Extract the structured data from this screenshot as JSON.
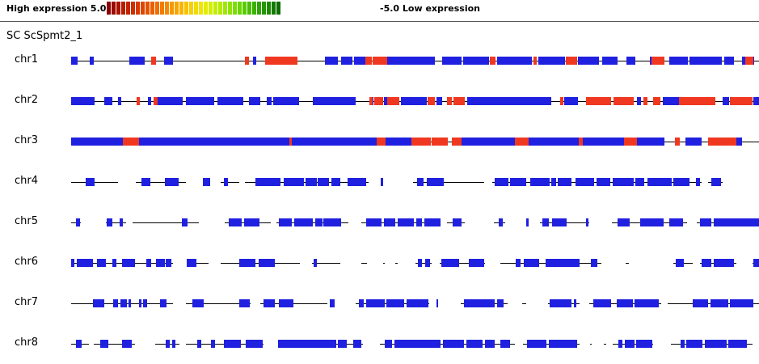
{
  "legend": {
    "high_label": "High expression 5.0",
    "low_label": "-5.0 Low expression",
    "swatch_colors": [
      "#8b0000",
      "#9a0a00",
      "#a81200",
      "#b51c00",
      "#c22400",
      "#cc2e00",
      "#d63a00",
      "#de4600",
      "#e45200",
      "#ea6000",
      "#ee6e00",
      "#f27c00",
      "#f48a00",
      "#f69800",
      "#f8a600",
      "#f8b400",
      "#f8c200",
      "#f6d000",
      "#f2dc00",
      "#eee600",
      "#e4ec00",
      "#d4ee00",
      "#c4ee00",
      "#b2ec00",
      "#a0e800",
      "#8ee400",
      "#7cde00",
      "#6ad600",
      "#58cc00",
      "#48c000",
      "#3ab200",
      "#2ea400",
      "#249600",
      "#1c8800",
      "#147a00",
      "#0e6c00"
    ]
  },
  "title": "SC  ScSpmt2_1",
  "colors": {
    "block": "#2020e0",
    "highlight": "#f03820",
    "line": "#000000"
  },
  "chart_data": {
    "type": "genome-track",
    "title": "SC  ScSpmt2_1",
    "chromosomes": [
      {
        "name": "chr1",
        "lines": [
          [
            88,
            939
          ]
        ],
        "blue": [
          [
            88,
            96
          ],
          [
            111,
            116
          ],
          [
            160,
            179
          ],
          [
            203,
            214
          ],
          [
            313,
            317
          ],
          [
            402,
            418
          ],
          [
            422,
            436
          ],
          [
            438,
            452
          ],
          [
            479,
            538
          ],
          [
            547,
            571
          ],
          [
            573,
            605
          ],
          [
            615,
            658
          ],
          [
            666,
            699
          ],
          [
            715,
            741
          ],
          [
            745,
            764
          ],
          [
            775,
            786
          ],
          [
            804,
            822
          ],
          [
            828,
            851
          ],
          [
            853,
            893
          ],
          [
            896,
            908
          ],
          [
            918,
            933
          ]
        ],
        "red": [
          [
            187,
            193
          ],
          [
            303,
            308
          ],
          [
            328,
            368
          ],
          [
            452,
            460
          ],
          [
            461,
            479
          ],
          [
            606,
            613
          ],
          [
            660,
            664
          ],
          [
            700,
            714
          ],
          [
            806,
            822
          ],
          [
            922,
            932
          ]
        ]
      },
      {
        "name": "chr2",
        "lines": [
          [
            88,
            939
          ]
        ],
        "blue": [
          [
            88,
            117
          ],
          [
            129,
            139
          ],
          [
            146,
            150
          ],
          [
            183,
            187
          ],
          [
            195,
            226
          ],
          [
            230,
            265
          ],
          [
            269,
            301
          ],
          [
            308,
            322
          ],
          [
            330,
            336
          ],
          [
            338,
            370
          ],
          [
            387,
            440
          ],
          [
            458,
            462
          ],
          [
            475,
            479
          ],
          [
            496,
            528
          ],
          [
            540,
            547
          ],
          [
            578,
            682
          ],
          [
            698,
            715
          ],
          [
            788,
            793
          ],
          [
            820,
            840
          ],
          [
            894,
            902
          ],
          [
            932,
            939
          ]
        ],
        "red": [
          [
            169,
            173
          ],
          [
            190,
            195
          ],
          [
            457,
            461
          ],
          [
            463,
            474
          ],
          [
            479,
            494
          ],
          [
            529,
            538
          ],
          [
            553,
            559
          ],
          [
            561,
            575
          ],
          [
            693,
            697
          ],
          [
            725,
            756
          ],
          [
            759,
            784
          ],
          [
            796,
            801
          ],
          [
            808,
            817
          ],
          [
            840,
            885
          ],
          [
            903,
            931
          ]
        ]
      },
      {
        "name": "chr3",
        "lines": [
          [
            88,
            939
          ]
        ],
        "blue": [
          [
            88,
            152
          ],
          [
            172,
            358
          ],
          [
            361,
            466
          ],
          [
            477,
            509
          ],
          [
            571,
            637
          ],
          [
            654,
            716
          ],
          [
            721,
            772
          ],
          [
            788,
            822
          ],
          [
            848,
            868
          ],
          [
            911,
            918
          ]
        ],
        "red": [
          [
            152,
            172
          ],
          [
            358,
            361
          ],
          [
            466,
            477
          ],
          [
            509,
            533
          ],
          [
            534,
            554
          ],
          [
            559,
            571
          ],
          [
            637,
            654
          ],
          [
            716,
            721
          ],
          [
            772,
            788
          ],
          [
            835,
            841
          ],
          [
            876,
            911
          ]
        ]
      },
      {
        "name": "chr4",
        "lines": [
          [
            88,
            146
          ],
          [
            168,
            230
          ],
          [
            273,
            296
          ],
          [
            303,
            456
          ],
          [
            511,
            599
          ],
          [
            609,
            868
          ],
          [
            876,
            894
          ]
        ],
        "blue": [
          [
            106,
            117
          ],
          [
            175,
            186
          ],
          [
            204,
            221
          ],
          [
            251,
            260
          ],
          [
            277,
            282
          ],
          [
            316,
            347
          ],
          [
            351,
            376
          ],
          [
            378,
            392
          ],
          [
            393,
            407
          ],
          [
            410,
            421
          ],
          [
            430,
            453
          ],
          [
            471,
            474
          ],
          [
            516,
            524
          ],
          [
            528,
            549
          ],
          [
            612,
            629
          ],
          [
            631,
            651
          ],
          [
            656,
            680
          ],
          [
            682,
            688
          ],
          [
            690,
            707
          ],
          [
            712,
            735
          ],
          [
            738,
            755
          ],
          [
            758,
            784
          ],
          [
            786,
            797
          ],
          [
            801,
            831
          ],
          [
            833,
            853
          ],
          [
            861,
            866
          ],
          [
            880,
            892
          ]
        ],
        "red": []
      },
      {
        "name": "chr5",
        "lines": [
          [
            88,
            100
          ],
          [
            131,
            156
          ],
          [
            164,
            246
          ],
          [
            278,
            335
          ],
          [
            342,
            431
          ],
          [
            447,
            531
          ],
          [
            553,
            575
          ],
          [
            611,
            625
          ],
          [
            668,
            729
          ],
          [
            757,
            850
          ],
          [
            862,
            939
          ]
        ],
        "blue": [
          [
            94,
            99
          ],
          [
            132,
            139
          ],
          [
            148,
            152
          ],
          [
            225,
            232
          ],
          [
            283,
            299
          ],
          [
            302,
            321
          ],
          [
            345,
            361
          ],
          [
            364,
            387
          ],
          [
            390,
            399
          ],
          [
            400,
            422
          ],
          [
            453,
            472
          ],
          [
            475,
            489
          ],
          [
            492,
            512
          ],
          [
            515,
            522
          ],
          [
            525,
            545
          ],
          [
            560,
            571
          ],
          [
            617,
            622
          ],
          [
            651,
            654
          ],
          [
            671,
            679
          ],
          [
            683,
            701
          ],
          [
            725,
            728
          ],
          [
            764,
            779
          ],
          [
            792,
            821
          ],
          [
            828,
            845
          ],
          [
            866,
            880
          ],
          [
            883,
            939
          ]
        ],
        "red": []
      },
      {
        "name": "chr6",
        "lines": [
          [
            88,
            195
          ],
          [
            198,
            214
          ],
          [
            231,
            258
          ],
          [
            273,
            371
          ],
          [
            386,
            421
          ],
          [
            447,
            454
          ],
          [
            474,
            476
          ],
          [
            489,
            492
          ],
          [
            514,
            534
          ],
          [
            544,
            600
          ],
          [
            619,
            744
          ],
          [
            774,
            778
          ],
          [
            833,
            857
          ],
          [
            866,
            911
          ],
          [
            931,
            939
          ]
        ],
        "blue": [
          [
            88,
            92
          ],
          [
            95,
            115
          ],
          [
            120,
            131
          ],
          [
            139,
            144
          ],
          [
            151,
            167
          ],
          [
            181,
            187
          ],
          [
            193,
            204
          ],
          [
            205,
            212
          ],
          [
            231,
            243
          ],
          [
            296,
            316
          ],
          [
            320,
            340
          ],
          [
            388,
            392
          ],
          [
            517,
            522
          ],
          [
            526,
            532
          ],
          [
            546,
            568
          ],
          [
            580,
            599
          ],
          [
            638,
            644
          ],
          [
            648,
            667
          ],
          [
            675,
            717
          ],
          [
            731,
            739
          ],
          [
            836,
            846
          ],
          [
            868,
            880
          ],
          [
            883,
            908
          ],
          [
            932,
            939
          ]
        ],
        "red": []
      },
      {
        "name": "chr7",
        "lines": [
          [
            88,
            214
          ],
          [
            230,
            310
          ],
          [
            322,
            405
          ],
          [
            440,
            531
          ],
          [
            570,
            628
          ],
          [
            646,
            651
          ],
          [
            678,
            717
          ],
          [
            729,
            818
          ],
          [
            826,
            939
          ]
        ],
        "blue": [
          [
            115,
            129
          ],
          [
            140,
            146
          ],
          [
            149,
            157
          ],
          [
            159,
            162
          ],
          [
            172,
            175
          ],
          [
            177,
            182
          ],
          [
            198,
            206
          ],
          [
            238,
            252
          ],
          [
            296,
            309
          ],
          [
            326,
            340
          ],
          [
            345,
            363
          ],
          [
            408,
            414
          ],
          [
            444,
            450
          ],
          [
            453,
            476
          ],
          [
            478,
            500
          ],
          [
            503,
            530
          ],
          [
            540,
            542
          ],
          [
            574,
            612
          ],
          [
            615,
            623
          ],
          [
            680,
            707
          ],
          [
            710,
            713
          ],
          [
            734,
            756
          ],
          [
            763,
            783
          ],
          [
            785,
            815
          ],
          [
            857,
            876
          ],
          [
            879,
            901
          ],
          [
            903,
            932
          ]
        ],
        "red": []
      },
      {
        "name": "chr8",
        "lines": [
          [
            88,
            110
          ],
          [
            116,
            167
          ],
          [
            192,
            222
          ],
          [
            230,
            326
          ],
          [
            344,
            449
          ],
          [
            470,
            637
          ],
          [
            647,
            717
          ],
          [
            730,
            732
          ],
          [
            747,
            750
          ],
          [
            758,
            808
          ],
          [
            830,
            931
          ]
        ],
        "blue": [
          [
            94,
            101
          ],
          [
            124,
            134
          ],
          [
            151,
            163
          ],
          [
            205,
            210
          ],
          [
            213,
            217
          ],
          [
            244,
            249
          ],
          [
            261,
            266
          ],
          [
            277,
            298
          ],
          [
            304,
            325
          ],
          [
            344,
            416
          ],
          [
            418,
            429
          ],
          [
            437,
            447
          ],
          [
            476,
            485
          ],
          [
            488,
            545
          ],
          [
            548,
            574
          ],
          [
            577,
            597
          ],
          [
            600,
            612
          ],
          [
            619,
            631
          ],
          [
            652,
            676
          ],
          [
            679,
            714
          ],
          [
            765,
            770
          ],
          [
            773,
            785
          ],
          [
            787,
            807
          ],
          [
            842,
            847
          ],
          [
            849,
            869
          ],
          [
            872,
            899
          ],
          [
            901,
            924
          ]
        ],
        "red": []
      }
    ]
  }
}
